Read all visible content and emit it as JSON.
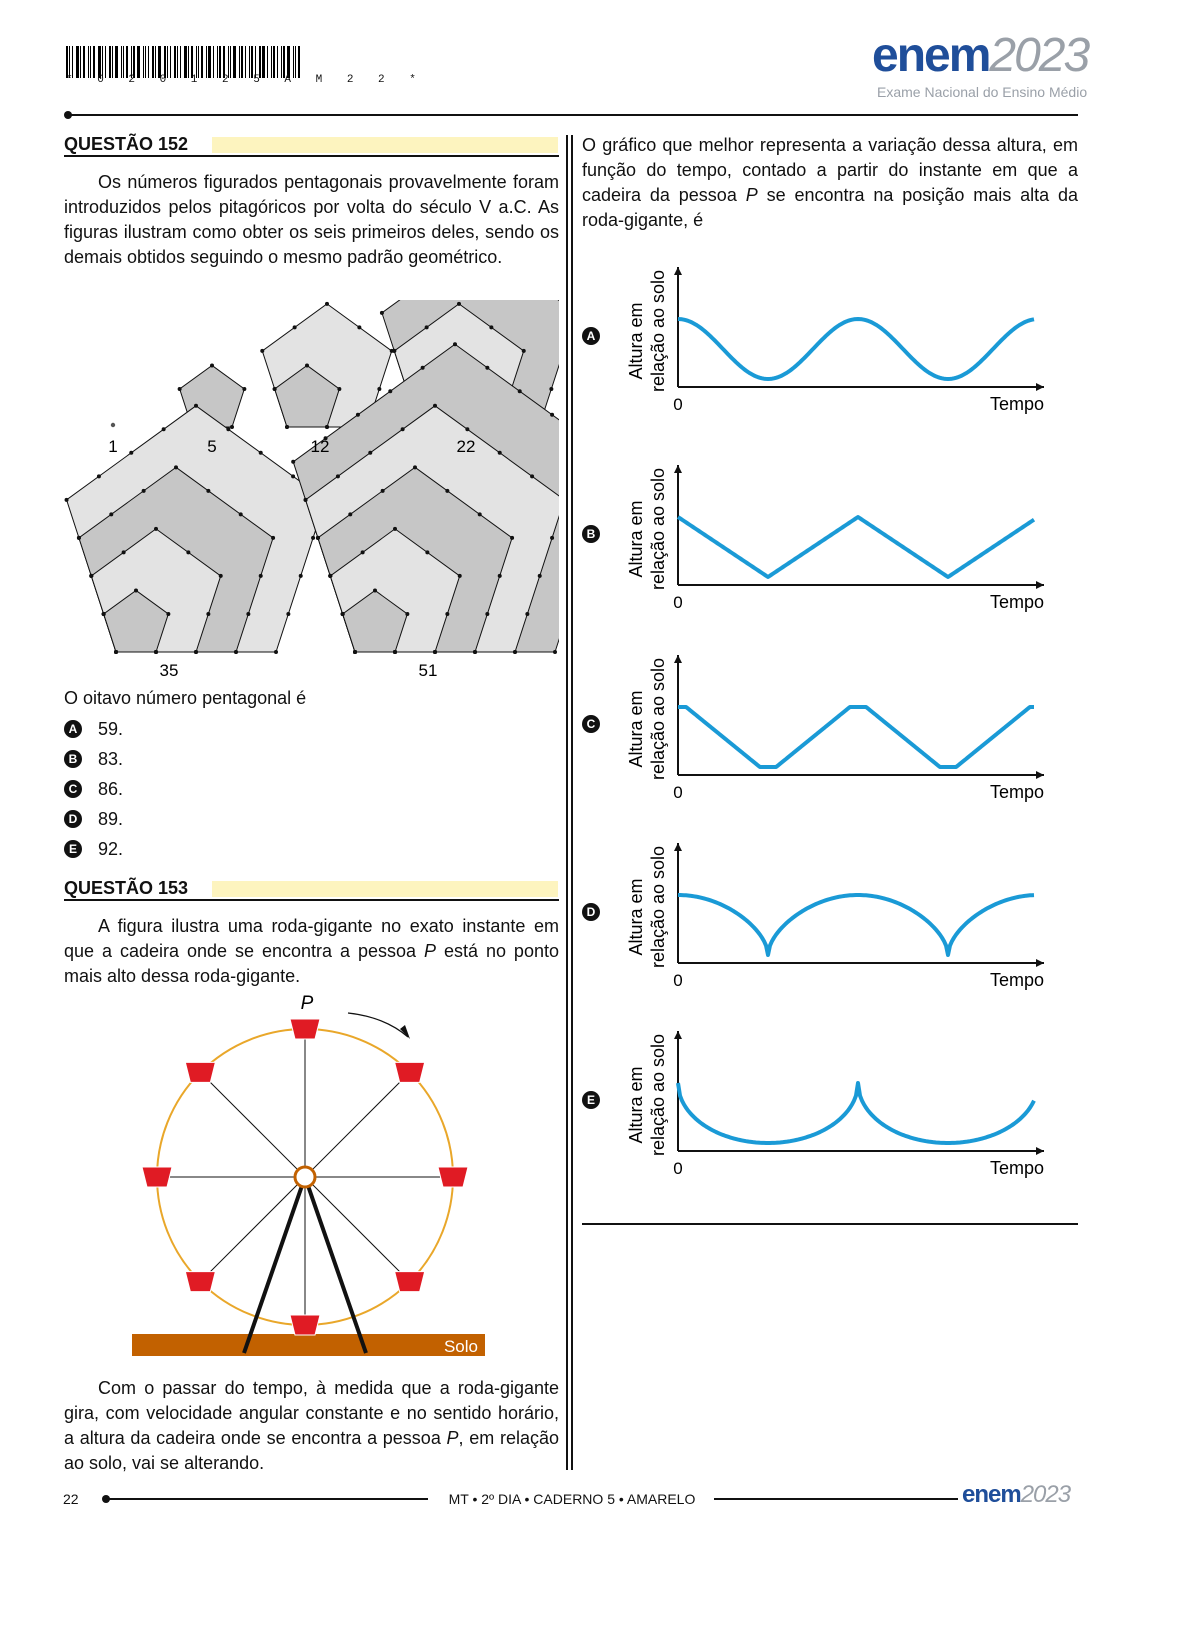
{
  "header": {
    "barcode_text": "* 0 2 0 1 2 5 A M 2 2 *",
    "logo_word": "enem",
    "logo_year": "2023",
    "logo_subtitle": "Exame Nacional do Ensino Médio"
  },
  "q152": {
    "title": "QUESTÃO 152",
    "intro": "Os números figurados pentagonais provavelmente foram introduzidos pelos pitagóricos por volta do século V a.C. As figuras ilustram como obter os seis primeiros deles, sendo os demais obtidos seguindo o mesmo padrão geométrico.",
    "figure_labels": [
      "1",
      "5",
      "12",
      "22",
      "35",
      "51"
    ],
    "question": "O oitavo número pentagonal é",
    "options": [
      {
        "letter": "A",
        "text": "59."
      },
      {
        "letter": "B",
        "text": "83."
      },
      {
        "letter": "C",
        "text": "86."
      },
      {
        "letter": "D",
        "text": "89."
      },
      {
        "letter": "E",
        "text": "92."
      }
    ]
  },
  "q153": {
    "title": "QUESTÃO 153",
    "intro_before_p": "A figura ilustra uma roda-gigante no exato instante em que a cadeira onde se encontra a pessoa",
    "intro_p": "P",
    "intro_after_p": "está no ponto mais alto dessa roda-gigante.",
    "wheel_p_label": "P",
    "ground_label": "Solo",
    "closing_before_p": "Com o passar do tempo, à medida que a roda-gigante gira, com velocidade angular constante e no sentido horário, a altura da cadeira onde se encontra a pessoa",
    "closing_p": "P",
    "closing_after_p": ", em relação ao solo, vai se alterando.",
    "stem_before_p": "O gráfico que melhor representa a variação dessa altura, em função do tempo, contado a partir do instante em que a cadeira da pessoa",
    "stem_p": "P",
    "stem_after_p": "se encontra na posição mais alta da roda-gigante, é",
    "graph_ylabel_line1": "Altura em",
    "graph_ylabel_line2": "relação ao solo",
    "graph_xlabel": "Tempo",
    "graph_origin": "0",
    "graph_letters": [
      "A",
      "B",
      "C",
      "D",
      "E"
    ],
    "curve_color": "#1a9ad6"
  },
  "footer": {
    "page_number": "22",
    "center_text": "MT • 2º DIA • CADERNO 5 • AMARELO",
    "logo_word": "enem",
    "logo_year": "2023"
  }
}
